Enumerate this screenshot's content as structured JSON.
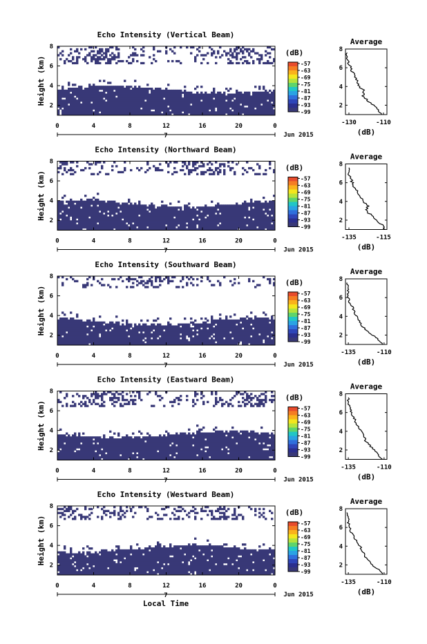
{
  "figure": {
    "xlabel": "Local Time",
    "date_label": "Jun 2015",
    "day_label": "7",
    "colorbar_unit": "(dB)",
    "colorbar_levels": [
      "-57",
      "-63",
      "-69",
      "-75",
      "-81",
      "-87",
      "-93",
      "-99"
    ],
    "colors": {
      "echo": "#383877",
      "colorbar": [
        "#e74c2c",
        "#f47d23",
        "#f9b21b",
        "#f4e61d",
        "#b6e33c",
        "#5fd46b",
        "#22c6c6",
        "#2aa3e3",
        "#2f6fdc",
        "#2e45b8",
        "#2b2f8e",
        "#383877"
      ]
    }
  },
  "chart_data": [
    {
      "type": "heatmap",
      "title": "Echo Intensity (Vertical Beam)",
      "ylabel": "Height (km)",
      "xlim": [
        0,
        24
      ],
      "ylim": [
        1,
        8
      ],
      "xticks": [
        "0",
        "4",
        "8",
        "12",
        "16",
        "20",
        "0"
      ],
      "yticks": [
        "2",
        "4",
        "6",
        "8"
      ],
      "layer_top_km": 3.6,
      "cloud_base_km": 6.2,
      "colorbar_unit": "(dB)",
      "colorbar_levels": [
        "-57",
        "-63",
        "-69",
        "-75",
        "-81",
        "-87",
        "-93",
        "-99"
      ],
      "average": {
        "title": "Average",
        "xlabel": "(dB)",
        "xticks": [
          "-130",
          "-110"
        ],
        "xlim": [
          -132,
          -108
        ],
        "ylim": [
          1,
          8
        ],
        "yticks": [
          "2",
          "4",
          "6",
          "8"
        ],
        "profile": [
          [
            -111,
            1.0
          ],
          [
            -113,
            1.5
          ],
          [
            -116,
            2.0
          ],
          [
            -119,
            2.5
          ],
          [
            -122,
            3.0
          ],
          [
            -121,
            3.5
          ],
          [
            -124,
            4.0
          ],
          [
            -125,
            4.5
          ],
          [
            -126,
            5.0
          ],
          [
            -128,
            5.5
          ],
          [
            -129,
            6.0
          ],
          [
            -130,
            6.5
          ],
          [
            -131,
            7.0
          ],
          [
            -131,
            7.6
          ]
        ]
      }
    },
    {
      "type": "heatmap",
      "title": "Echo Intensity (Northward Beam)",
      "ylabel": "Height (km)",
      "xlim": [
        0,
        24
      ],
      "ylim": [
        1,
        8
      ],
      "xticks": [
        "0",
        "4",
        "8",
        "12",
        "16",
        "20",
        "0"
      ],
      "yticks": [
        "2",
        "4",
        "6",
        "8"
      ],
      "layer_top_km": 3.7,
      "cloud_base_km": 6.5,
      "colorbar_unit": "(dB)",
      "colorbar_levels": [
        "-57",
        "-63",
        "-69",
        "-75",
        "-81",
        "-87",
        "-93",
        "-99"
      ],
      "average": {
        "title": "Average",
        "xlabel": "(dB)",
        "xticks": [
          "-135",
          "-115"
        ],
        "xlim": [
          -137,
          -113
        ],
        "ylim": [
          1,
          8
        ],
        "yticks": [
          "2",
          "4",
          "6",
          "8"
        ],
        "profile": [
          [
            -114,
            1.0
          ],
          [
            -116,
            1.5
          ],
          [
            -119,
            2.0
          ],
          [
            -122,
            2.5
          ],
          [
            -125,
            3.0
          ],
          [
            -124,
            3.5
          ],
          [
            -127,
            4.0
          ],
          [
            -128,
            4.5
          ],
          [
            -130,
            5.0
          ],
          [
            -132,
            5.5
          ],
          [
            -133,
            6.0
          ],
          [
            -134,
            6.5
          ],
          [
            -135,
            7.0
          ],
          [
            -135,
            7.6
          ]
        ]
      }
    },
    {
      "type": "heatmap",
      "title": "Echo Intensity (Southward Beam)",
      "ylabel": "Height (km)",
      "xlim": [
        0,
        24
      ],
      "ylim": [
        1,
        8
      ],
      "xticks": [
        "0",
        "4",
        "8",
        "12",
        "16",
        "20",
        "0"
      ],
      "yticks": [
        "2",
        "4",
        "6",
        "8"
      ],
      "layer_top_km": 3.4,
      "cloud_base_km": 6.8,
      "colorbar_unit": "(dB)",
      "colorbar_levels": [
        "-57",
        "-63",
        "-69",
        "-75",
        "-81",
        "-87",
        "-93",
        "-99"
      ],
      "average": {
        "title": "Average",
        "xlabel": "(dB)",
        "xticks": [
          "-135",
          "-110"
        ],
        "xlim": [
          -137,
          -108
        ],
        "ylim": [
          1,
          8
        ],
        "yticks": [
          "2",
          "4",
          "6",
          "8"
        ],
        "profile": [
          [
            -111,
            1.0
          ],
          [
            -114,
            1.5
          ],
          [
            -118,
            2.0
          ],
          [
            -122,
            2.5
          ],
          [
            -126,
            3.0
          ],
          [
            -127,
            3.5
          ],
          [
            -129,
            4.0
          ],
          [
            -131,
            4.5
          ],
          [
            -132,
            5.0
          ],
          [
            -134,
            5.5
          ],
          [
            -135,
            6.0
          ],
          [
            -135,
            6.5
          ],
          [
            -135,
            7.0
          ],
          [
            -136,
            7.6
          ]
        ]
      }
    },
    {
      "type": "heatmap",
      "title": "Echo Intensity (Eastward Beam)",
      "ylabel": "Height (km)",
      "xlim": [
        0,
        24
      ],
      "ylim": [
        1,
        8
      ],
      "xticks": [
        "0",
        "4",
        "8",
        "12",
        "16",
        "20",
        "0"
      ],
      "yticks": [
        "2",
        "4",
        "6",
        "8"
      ],
      "layer_top_km": 3.6,
      "cloud_base_km": 6.3,
      "colorbar_unit": "(dB)",
      "colorbar_levels": [
        "-57",
        "-63",
        "-69",
        "-75",
        "-81",
        "-87",
        "-93",
        "-99"
      ],
      "average": {
        "title": "Average",
        "xlabel": "(dB)",
        "xticks": [
          "-135",
          "-110"
        ],
        "xlim": [
          -137,
          -108
        ],
        "ylim": [
          1,
          8
        ],
        "yticks": [
          "2",
          "4",
          "6",
          "8"
        ],
        "profile": [
          [
            -111,
            1.0
          ],
          [
            -114,
            1.5
          ],
          [
            -117,
            2.0
          ],
          [
            -120,
            2.5
          ],
          [
            -123,
            3.0
          ],
          [
            -124,
            3.5
          ],
          [
            -126,
            4.0
          ],
          [
            -128,
            4.5
          ],
          [
            -130,
            5.0
          ],
          [
            -131,
            5.5
          ],
          [
            -133,
            6.0
          ],
          [
            -134,
            6.5
          ],
          [
            -135,
            7.0
          ],
          [
            -135,
            7.6
          ]
        ]
      }
    },
    {
      "type": "heatmap",
      "title": "Echo Intensity (Westward Beam)",
      "ylabel": "Height (km)",
      "xlim": [
        0,
        24
      ],
      "ylim": [
        1,
        8
      ],
      "xticks": [
        "0",
        "4",
        "8",
        "12",
        "16",
        "20",
        "0"
      ],
      "yticks": [
        "2",
        "4",
        "6",
        "8"
      ],
      "layer_top_km": 3.7,
      "cloud_base_km": 6.6,
      "colorbar_unit": "(dB)",
      "colorbar_levels": [
        "-57",
        "-63",
        "-69",
        "-75",
        "-81",
        "-87",
        "-93",
        "-99"
      ],
      "average": {
        "title": "Average",
        "xlabel": "(dB)",
        "xticks": [
          "-135",
          "-110"
        ],
        "xlim": [
          -137,
          -108
        ],
        "ylim": [
          1,
          8
        ],
        "yticks": [
          "2",
          "4",
          "6",
          "8"
        ],
        "profile": [
          [
            -111,
            1.0
          ],
          [
            -114,
            1.5
          ],
          [
            -118,
            2.0
          ],
          [
            -121,
            2.5
          ],
          [
            -124,
            3.0
          ],
          [
            -125,
            3.5
          ],
          [
            -127,
            4.0
          ],
          [
            -129,
            4.5
          ],
          [
            -131,
            5.0
          ],
          [
            -133,
            5.5
          ],
          [
            -134,
            6.0
          ],
          [
            -135,
            6.5
          ],
          [
            -135,
            7.0
          ],
          [
            -136,
            7.6
          ]
        ]
      }
    }
  ]
}
